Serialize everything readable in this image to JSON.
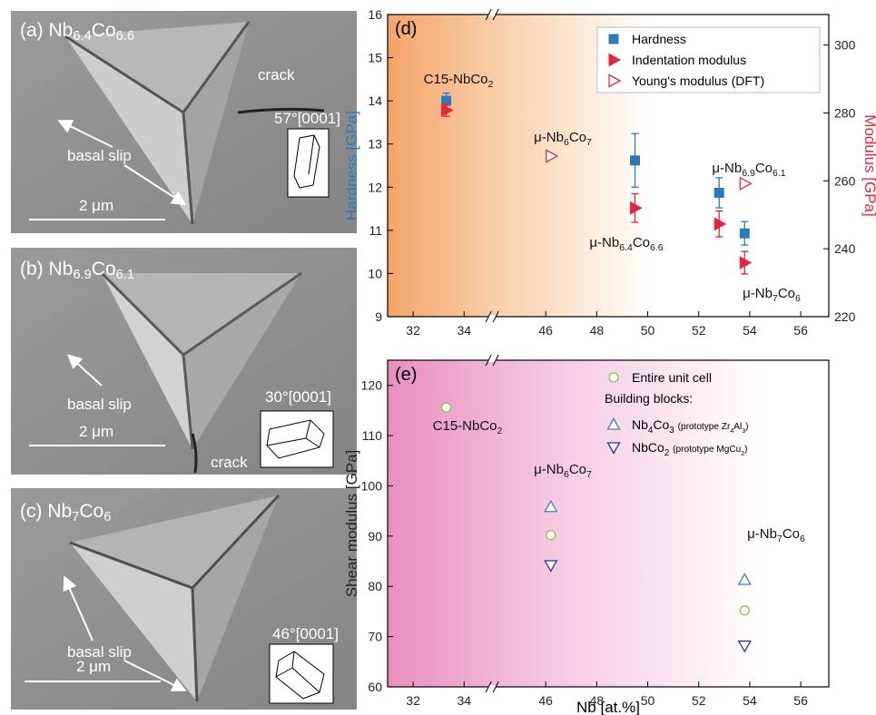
{
  "images": [
    {
      "label": "(a) Nb6.4Co6.6",
      "crack": "crack",
      "slip": "basal slip",
      "orientation": "57°[0001]",
      "scale": "2 μm"
    },
    {
      "label": "(b) Nb6.9Co6.1",
      "crack": "crack",
      "slip": "basal slip",
      "orientation": "30°[0001]",
      "scale": "2 μm"
    },
    {
      "label": "(c) Nb7Co6",
      "slip": "basal slip",
      "orientation": "46°[0001]",
      "scale": "2 μm"
    }
  ],
  "chart_data": [
    {
      "type": "scatter",
      "panel": "(d)",
      "xlim": [
        31,
        57.1
      ],
      "xbreak": [
        35.1,
        43.9
      ],
      "xticks": [
        32,
        34,
        46,
        48,
        50,
        52,
        54,
        56
      ],
      "ylabel": "Hardness [GPa]",
      "ylim": [
        9,
        16
      ],
      "yticks": [
        9,
        10,
        11,
        12,
        13,
        14,
        15,
        16
      ],
      "y2label": "Modulus [GPa]",
      "y2lim": [
        220,
        309
      ],
      "y2ticks": [
        220,
        240,
        260,
        280,
        300
      ],
      "legend": "upper right",
      "series": [
        {
          "name": "Hardness",
          "color": "#2b7bba",
          "marker": "square",
          "x": [
            33.3,
            49.5,
            52.8,
            53.8
          ],
          "values": [
            14.0,
            12.62,
            11.87,
            10.93
          ],
          "errors": [
            0.18,
            0.62,
            0.35,
            0.27
          ]
        },
        {
          "name": "Indentation modulus",
          "color": "#e3263b",
          "marker": "triangle-right",
          "axis": "y2",
          "x": [
            33.3,
            49.5,
            52.8,
            53.8
          ],
          "values": [
            280.8,
            252.0,
            247.3,
            235.9
          ],
          "errors": [
            1.8,
            4.2,
            3.8,
            3.3
          ]
        },
        {
          "name": "Young's modulus (DFT)",
          "color": "#e3263b",
          "marker": "triangle-right-open",
          "axis": "y2",
          "x": [
            46.2,
            53.8
          ],
          "values": [
            267.3,
            259.2
          ]
        }
      ],
      "annotations": [
        "C15-NbCo2",
        "μ-Nb6Co7",
        "μ-Nb6.4Co6.6",
        "μ-Nb6.9Co6.1",
        "μ-Nb7Co6"
      ]
    },
    {
      "type": "scatter",
      "panel": "(e)",
      "xlim": [
        31,
        57.1
      ],
      "xbreak": [
        35.1,
        43.9
      ],
      "xticks": [
        32,
        34,
        46,
        48,
        50,
        52,
        54,
        56
      ],
      "xlabel": "Nb [at.%]",
      "ylabel": "Shear modulus [GPa]",
      "ylim": [
        60,
        125
      ],
      "yticks": [
        60,
        70,
        80,
        90,
        100,
        110,
        120
      ],
      "legend": "upper right",
      "legend_note": "Building blocks:",
      "series": [
        {
          "name": "Entire unit cell",
          "color": "#8cc152",
          "marker": "circle-open",
          "x": [
            33.3,
            46.2,
            53.8
          ],
          "values": [
            115.6,
            90.2,
            75.2
          ]
        },
        {
          "name": "Nb4Co3 (prototype Zr4Al3)",
          "color": "#3a7fd5",
          "marker": "triangle-up-open",
          "x": [
            46.2,
            53.8
          ],
          "values": [
            95.8,
            81.3
          ]
        },
        {
          "name": "NbCo2 (prototype MgCu2)",
          "color": "#2e2e9e",
          "marker": "triangle-down-open",
          "x": [
            46.2,
            53.8
          ],
          "values": [
            84.2,
            68.2
          ]
        }
      ],
      "annotations": [
        "C15-NbCo2",
        "μ-Nb6Co7",
        "μ-Nb7Co6"
      ]
    }
  ]
}
